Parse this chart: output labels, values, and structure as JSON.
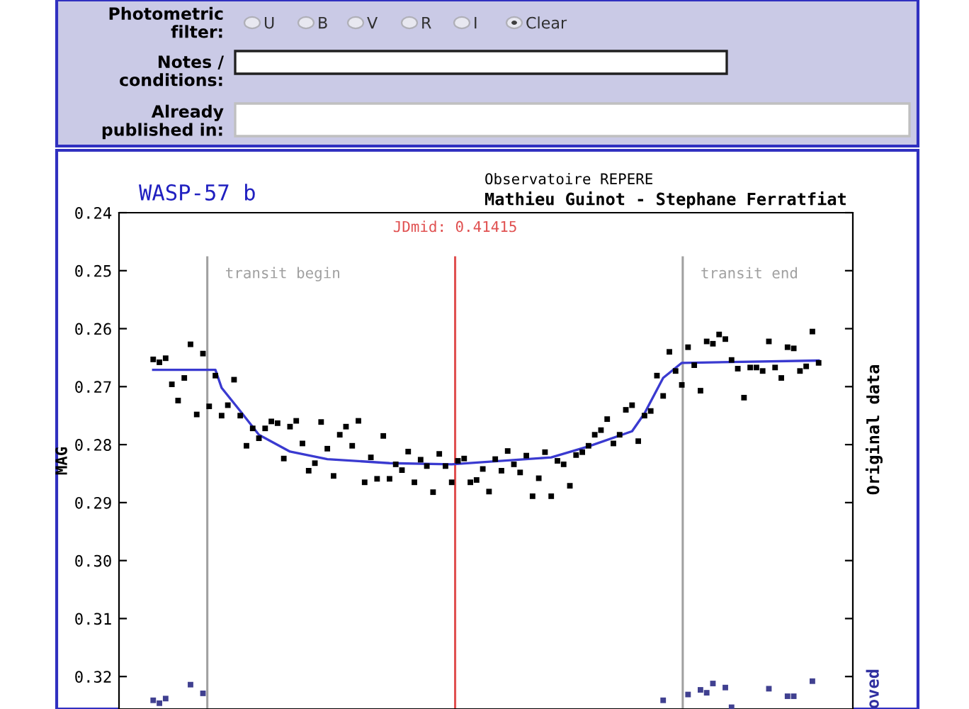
{
  "chart_data": {
    "type": "scatter",
    "title": "WASP-57 b",
    "subtitle": "Observatoire REPERE\nMathieu Guinot - Stephane Ferratfiat",
    "ylabel": "MAG",
    "annotations": [
      "Photometric\nfilter:",
      "U",
      "B",
      "V",
      "R",
      "I",
      "Clear",
      "Notes /\nconditions:",
      "Already\npublished in:",
      "Original data",
      "oved",
      "transit begin",
      "transit end",
      "JDmid: 0.41415"
    ],
    "categories": [
      null,
      null,
      null,
      null,
      null,
      null,
      null,
      null,
      null,
      null,
      null,
      null,
      null,
      null,
      null,
      null,
      null,
      null,
      null,
      null,
      null,
      null,
      null,
      null,
      null,
      null,
      null,
      null,
      null,
      null,
      null,
      null,
      null,
      null,
      null,
      null,
      null,
      null,
      null,
      null,
      null,
      null,
      null,
      null,
      null,
      null,
      null,
      null,
      null,
      null,
      null,
      null,
      null,
      null,
      null,
      null,
      null,
      null,
      null,
      null,
      null,
      null,
      null,
      null,
      null,
      null,
      null,
      null,
      null,
      null,
      null,
      null,
      null,
      null,
      null,
      null,
      null,
      null,
      null,
      null,
      null,
      null,
      null,
      null,
      null,
      null,
      null,
      null,
      null,
      null,
      null,
      null,
      null,
      null,
      null,
      null,
      null,
      null,
      null,
      null,
      null,
      null,
      null,
      null,
      null,
      null,
      null,
      null,
      null,
      null,
      null,
      null,
      null,
      null,
      null,
      null,
      null,
      null
    ],
    "ylim": [
      0.3256,
      0.24
    ],
    "yticks": [
      0.24,
      0.25,
      0.26,
      0.27,
      0.28,
      0.29,
      {
        "value": 0.3,
        "label": "0.30"
      },
      0.31,
      0.32
    ],
    "tick_labels": "y",
    "series": [
      {
        "color": "#000000",
        "marker": "square",
        "values": [
          null,
          null,
          null,
          null,
          null,
          0.2653,
          0.2658,
          0.2651,
          0.2696,
          0.2724,
          0.2685,
          0.2627,
          0.2748,
          0.2643,
          0.2734,
          0.2681,
          0.275,
          0.2732,
          0.2688,
          0.275,
          0.2802,
          0.2772,
          0.2789,
          0.2772,
          0.276,
          0.2763,
          0.2824,
          0.2769,
          0.2759,
          0.2798,
          0.2845,
          0.2832,
          0.2761,
          0.2807,
          0.2854,
          0.2783,
          0.2769,
          0.2802,
          0.2759,
          0.2865,
          0.2822,
          0.2859,
          0.2785,
          0.2859,
          0.2834,
          0.2844,
          0.2812,
          0.2865,
          0.2826,
          0.2837,
          0.2882,
          0.2816,
          0.2837,
          0.2865,
          0.2828,
          0.2824,
          0.2865,
          0.2861,
          0.2842,
          0.2881,
          0.2825,
          0.2845,
          0.2811,
          0.2834,
          0.2848,
          0.2819,
          0.2889,
          0.2858,
          0.2813,
          0.2889,
          0.2828,
          0.2834,
          0.2871,
          0.2818,
          0.2813,
          0.2802,
          0.2783,
          0.2775,
          0.2756,
          0.2798,
          0.2783,
          0.274,
          0.2732,
          0.2794,
          0.275,
          0.2742,
          0.2681,
          0.2716,
          0.264,
          0.2673,
          0.2697,
          0.2632,
          0.2663,
          0.2707,
          0.2622,
          0.2626,
          0.261,
          0.2618,
          0.2654,
          0.2669,
          0.2719,
          0.2667,
          0.2667,
          0.2673,
          0.2622,
          0.2667,
          0.2685,
          0.2632,
          0.2634,
          0.2673,
          0.2665,
          0.2605,
          0.2659,
          null,
          null,
          null,
          null,
          null
        ]
      },
      {
        "type": "line",
        "color": "#3a3ad0",
        "marker": "none",
        "values": [
          null,
          null,
          null,
          null,
          null,
          0.2671,
          null,
          null,
          null,
          null,
          null,
          null,
          null,
          null,
          null,
          0.2671,
          0.2702,
          null,
          null,
          0.2742,
          null,
          null,
          0.2783,
          null,
          null,
          null,
          null,
          0.2812,
          null,
          null,
          null,
          null,
          null,
          0.2825,
          null,
          null,
          null,
          null,
          null,
          null,
          null,
          null,
          null,
          0.2832,
          null,
          null,
          null,
          null,
          null,
          null,
          null,
          null,
          null,
          0.2834,
          null,
          null,
          null,
          null,
          null,
          null,
          null,
          null,
          null,
          null,
          null,
          null,
          null,
          null,
          null,
          0.2822,
          null,
          null,
          null,
          null,
          null,
          0.2803,
          null,
          null,
          null,
          null,
          null,
          null,
          0.2777,
          null,
          0.2746,
          null,
          null,
          0.2685,
          null,
          null,
          0.2659,
          null,
          null,
          null,
          null,
          null,
          null,
          null,
          null,
          null,
          null,
          null,
          null,
          null,
          null,
          null,
          null,
          null,
          null,
          null,
          null,
          null,
          0.2655,
          null,
          null,
          null,
          null,
          null
        ]
      },
      {
        "color": "#404090",
        "marker": "square",
        "values": [
          null,
          null,
          null,
          null,
          null,
          0.3241,
          0.3246,
          0.3238,
          null,
          null,
          null,
          0.3214,
          null,
          0.3229,
          null,
          null,
          null,
          null,
          null,
          null,
          null,
          null,
          null,
          null,
          null,
          null,
          null,
          null,
          null,
          null,
          null,
          null,
          null,
          null,
          null,
          null,
          null,
          null,
          null,
          null,
          null,
          null,
          null,
          null,
          null,
          null,
          null,
          null,
          null,
          null,
          null,
          null,
          null,
          null,
          null,
          null,
          null,
          null,
          null,
          null,
          null,
          null,
          null,
          null,
          null,
          null,
          null,
          null,
          null,
          null,
          null,
          null,
          null,
          null,
          null,
          null,
          null,
          null,
          null,
          null,
          null,
          null,
          null,
          null,
          null,
          null,
          null,
          0.3241,
          null,
          null,
          null,
          0.3231,
          null,
          0.3223,
          0.3228,
          0.3212,
          null,
          0.3219,
          0.3253,
          null,
          null,
          null,
          null,
          null,
          0.3221,
          null,
          null,
          0.3234,
          0.3234,
          null,
          null,
          0.3208,
          null,
          null,
          null,
          null,
          null,
          null
        ]
      }
    ]
  }
}
